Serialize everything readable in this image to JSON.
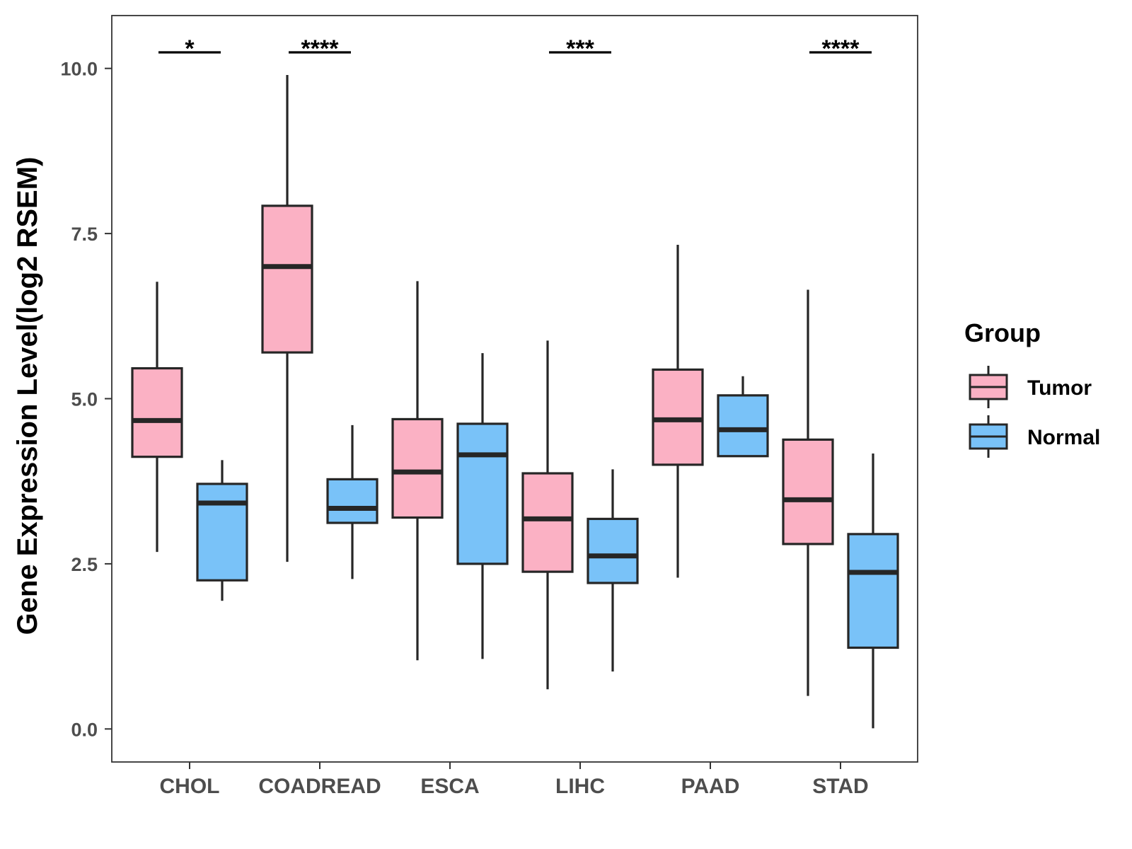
{
  "chart_data": {
    "type": "boxplot",
    "title": "",
    "xlabel": "",
    "ylabel": "Gene Expression Level(log2 RSEM)",
    "ylim": [
      -0.5,
      10.8
    ],
    "yticks": [
      0.0,
      2.5,
      5.0,
      7.5,
      10.0
    ],
    "ytick_labels": [
      "0.0",
      "2.5",
      "5.0",
      "7.5",
      "10.0"
    ],
    "grid": false,
    "categories": [
      "CHOL",
      "COADREAD",
      "ESCA",
      "LIHC",
      "PAAD",
      "STAD"
    ],
    "legend": {
      "title": "Group",
      "position": "right",
      "items": [
        {
          "name": "Tumor",
          "color": "#fbb1c4"
        },
        {
          "name": "Normal",
          "color": "#79c2f8"
        }
      ]
    },
    "series": [
      {
        "name": "Tumor",
        "color": "#fbb1c4",
        "boxes": [
          {
            "min": 2.68,
            "q1": 4.12,
            "median": 4.67,
            "q3": 5.46,
            "max": 6.77
          },
          {
            "min": 2.53,
            "q1": 5.7,
            "median": 7.0,
            "q3": 7.92,
            "max": 9.9
          },
          {
            "min": 1.04,
            "q1": 3.2,
            "median": 3.89,
            "q3": 4.69,
            "max": 6.78
          },
          {
            "min": 0.6,
            "q1": 2.38,
            "median": 3.18,
            "q3": 3.87,
            "max": 5.88
          },
          {
            "min": 2.29,
            "q1": 4.0,
            "median": 4.68,
            "q3": 5.44,
            "max": 7.33
          },
          {
            "min": 0.5,
            "q1": 2.8,
            "median": 3.47,
            "q3": 4.38,
            "max": 6.65
          }
        ]
      },
      {
        "name": "Normal",
        "color": "#79c2f8",
        "boxes": [
          {
            "min": 1.94,
            "q1": 2.25,
            "median": 3.42,
            "q3": 3.71,
            "max": 4.07
          },
          {
            "min": 2.27,
            "q1": 3.12,
            "median": 3.34,
            "q3": 3.78,
            "max": 4.6
          },
          {
            "min": 1.06,
            "q1": 2.5,
            "median": 4.15,
            "q3": 4.62,
            "max": 5.69
          },
          {
            "min": 0.87,
            "q1": 2.21,
            "median": 2.62,
            "q3": 3.18,
            "max": 3.93
          },
          {
            "min": 4.13,
            "q1": 4.13,
            "median": 4.53,
            "q3": 5.05,
            "max": 5.34
          },
          {
            "min": 0.01,
            "q1": 1.23,
            "median": 2.37,
            "q3": 2.95,
            "max": 4.17
          }
        ]
      }
    ],
    "significance": [
      {
        "category": "CHOL",
        "label": "*"
      },
      {
        "category": "COADREAD",
        "label": "****"
      },
      {
        "category": "ESCA",
        "label": ""
      },
      {
        "category": "LIHC",
        "label": "***"
      },
      {
        "category": "PAAD",
        "label": ""
      },
      {
        "category": "STAD",
        "label": "****"
      }
    ]
  }
}
